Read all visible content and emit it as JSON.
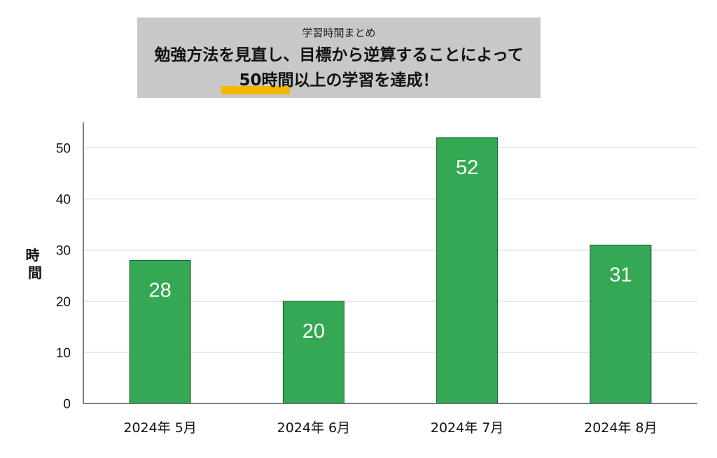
{
  "header": {
    "subtitle": "学習時間まとめ",
    "line1": "勉強方法を見直し、目標から逆算することによって",
    "line2": "50時間以上の学習を達成！"
  },
  "colors": {
    "bar": "#34a853",
    "bar_border": "#1e5a2a",
    "header_bg": "#c8c8c8",
    "highlight": "#f5b800"
  },
  "chart_data": {
    "type": "bar",
    "title": "",
    "xlabel": "",
    "ylabel": "時間",
    "categories": [
      "2024年 5月",
      "2024年 6月",
      "2024年 7月",
      "2024年 8月"
    ],
    "values": [
      28,
      20,
      52,
      31
    ],
    "ylim": [
      0,
      55
    ],
    "yticks": [
      0,
      10,
      20,
      30,
      40,
      50
    ],
    "grid": true,
    "legend": "none"
  }
}
